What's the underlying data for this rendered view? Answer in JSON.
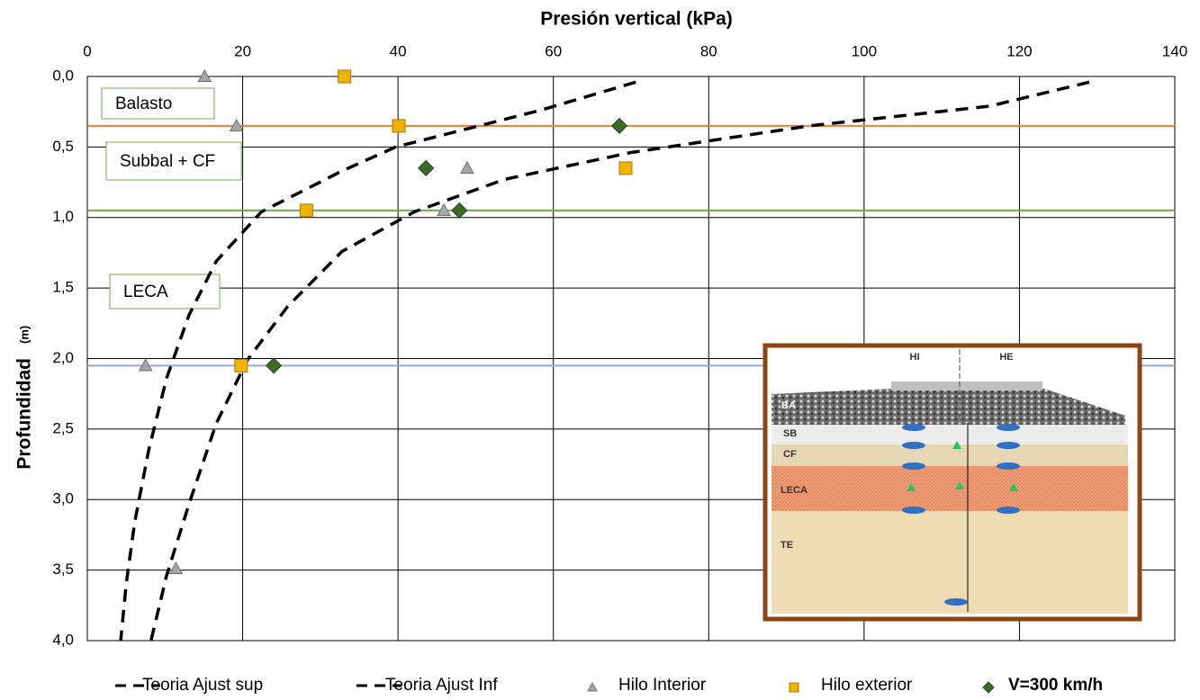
{
  "chart_data": {
    "type": "scatter",
    "title": "Presión vertical (kPa)",
    "ylabel": "Profundidad",
    "ylabel_unit": "(m)",
    "xlim": [
      0,
      140
    ],
    "xticks": [
      0,
      20,
      40,
      60,
      80,
      100,
      120,
      140
    ],
    "ylim": [
      0,
      4
    ],
    "yticks": [
      {
        "value": 0,
        "label": "0,0"
      },
      {
        "value": 0.5,
        "label": "0,5"
      },
      {
        "value": 1,
        "label": "1,0"
      },
      {
        "value": 1.5,
        "label": "1,5"
      },
      {
        "value": 2,
        "label": "2,0"
      },
      {
        "value": 2.5,
        "label": "2,5"
      },
      {
        "value": 3,
        "label": "3,0"
      },
      {
        "value": 3.5,
        "label": "3,5"
      },
      {
        "value": 4,
        "label": "4,0"
      }
    ],
    "y_inverted": true,
    "grid": true,
    "hlines": [
      {
        "value": 0.35,
        "color": "#ed7d31"
      },
      {
        "value": 0.95,
        "color": "#70ad47"
      },
      {
        "value": 2.05,
        "color": "#8eaadb"
      }
    ],
    "annotations": [
      "Balasto",
      "Subbal + CF",
      "LECA"
    ],
    "inset_labels": [
      "HI",
      "HE",
      "BA",
      "SB",
      "CF",
      "LECA",
      "TE"
    ],
    "series": [
      {
        "name": "Teoria Ajust sup",
        "type": "line",
        "color": "#000000",
        "x": [
          70.6,
          58.3,
          39.7,
          32.8,
          22.4,
          16.6,
          13.1,
          10.2,
          7.9,
          6.1,
          5.0,
          4.3
        ],
        "values": [
          0.04,
          0.24,
          0.5,
          0.67,
          0.96,
          1.31,
          1.69,
          2.14,
          2.65,
          3.16,
          3.6,
          4.0
        ]
      },
      {
        "name": "Teoria Ajust Inf",
        "type": "line",
        "color": "#000000",
        "x": [
          129,
          116.2,
          93,
          69.9,
          53.7,
          42.1,
          32.8,
          25.8,
          20.6,
          16.6,
          13.1,
          10.2,
          8.2
        ],
        "values": [
          0.04,
          0.21,
          0.35,
          0.54,
          0.73,
          0.96,
          1.24,
          1.63,
          2.01,
          2.46,
          3.03,
          3.54,
          4.0
        ]
      },
      {
        "name": "Hilo Interior",
        "type": "scatter",
        "marker": "triangle",
        "color": "#a6a6a6",
        "x": [
          15.1,
          19.2,
          48.9,
          45.9,
          7.5,
          11.4
        ],
        "values": [
          0.0,
          0.35,
          0.65,
          0.95,
          2.05,
          3.49
        ]
      },
      {
        "name": "Hilo exterior",
        "type": "scatter",
        "marker": "square",
        "color": "#f0b400",
        "x": [
          33.1,
          40.1,
          69.3,
          28.2,
          19.8
        ],
        "values": [
          0.0,
          0.35,
          0.65,
          0.95,
          2.05
        ]
      },
      {
        "name": "V=300 km/h",
        "type": "scatter",
        "marker": "diamond",
        "color": "#3a6b28",
        "x": [
          68.5,
          43.6,
          47.9,
          24.0
        ],
        "values": [
          0.35,
          0.65,
          0.95,
          2.05
        ]
      }
    ]
  }
}
